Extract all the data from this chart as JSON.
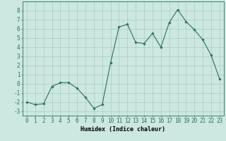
{
  "x": [
    0,
    1,
    2,
    3,
    4,
    5,
    6,
    7,
    8,
    9,
    10,
    11,
    12,
    13,
    14,
    15,
    16,
    17,
    18,
    19,
    20,
    21,
    22,
    23
  ],
  "y": [
    -2.0,
    -2.3,
    -2.2,
    -0.3,
    0.1,
    0.1,
    -0.5,
    -1.5,
    -2.7,
    -2.3,
    2.3,
    6.2,
    6.5,
    4.5,
    4.4,
    5.5,
    4.0,
    6.7,
    8.1,
    6.8,
    5.9,
    4.8,
    3.1,
    0.5
  ],
  "line_color": "#2d6e5e",
  "marker": "D",
  "marker_size": 1.8,
  "bg_color": "#cce8e0",
  "grid_color": "#a8ccc5",
  "xlabel": "Humidex (Indice chaleur)",
  "ylim": [
    -3.5,
    9.0
  ],
  "xlim": [
    -0.5,
    23.5
  ],
  "yticks": [
    -3,
    -2,
    -1,
    0,
    1,
    2,
    3,
    4,
    5,
    6,
    7,
    8
  ],
  "xticks": [
    0,
    1,
    2,
    3,
    4,
    5,
    6,
    7,
    8,
    9,
    10,
    11,
    12,
    13,
    14,
    15,
    16,
    17,
    18,
    19,
    20,
    21,
    22,
    23
  ],
  "label_fontsize": 6.0,
  "tick_fontsize": 5.5,
  "linewidth": 0.8
}
